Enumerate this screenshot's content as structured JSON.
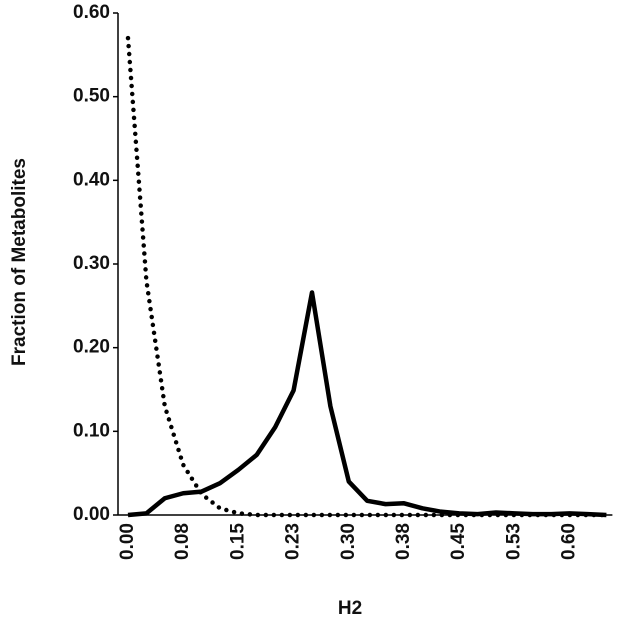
{
  "chart_data": {
    "type": "line",
    "x_label": "H2",
    "y_label": "Fraction of Metabolites",
    "categories": [
      "0.00",
      null,
      null,
      "0.08",
      null,
      null,
      "0.15",
      null,
      null,
      "0.23",
      null,
      null,
      "0.30",
      null,
      null,
      "0.38",
      null,
      null,
      "0.45",
      null,
      null,
      "0.53",
      null,
      null,
      "0.60",
      null,
      null
    ],
    "series": [
      {
        "color": "#000000",
        "style": "solid",
        "values": [
          0,
          0.002,
          0.02,
          0.026,
          0.028,
          0.038,
          0.054,
          0.072,
          0.105,
          0.149,
          0.266,
          0.13,
          0.04,
          0.017,
          0.013,
          0.014,
          0.008,
          0.004,
          0.002,
          0.001,
          0.003,
          0.002,
          0.001,
          0.001,
          0.002,
          0.001,
          0
        ]
      },
      {
        "color": "#000000",
        "style": "dotted",
        "values": [
          0.57,
          0.28,
          0.13,
          0.06,
          0.025,
          0.008,
          0.002,
          0,
          0,
          0,
          0,
          0,
          0,
          0,
          0,
          0,
          0,
          0,
          0,
          0,
          0,
          0,
          0,
          0,
          0,
          0,
          0
        ]
      }
    ],
    "ylim": [
      0,
      0.6
    ],
    "yticks": [
      {
        "value": 0,
        "label": "0.00"
      },
      {
        "value": 0.1,
        "label": "0.10"
      },
      {
        "value": 0.2,
        "label": "0.20"
      },
      {
        "value": 0.3,
        "label": "0.30"
      },
      {
        "value": 0.4,
        "label": "0.40"
      },
      {
        "value": 0.5,
        "label": "0.50"
      },
      {
        "value": 0.6,
        "label": "0.60"
      }
    ],
    "grid": false
  }
}
